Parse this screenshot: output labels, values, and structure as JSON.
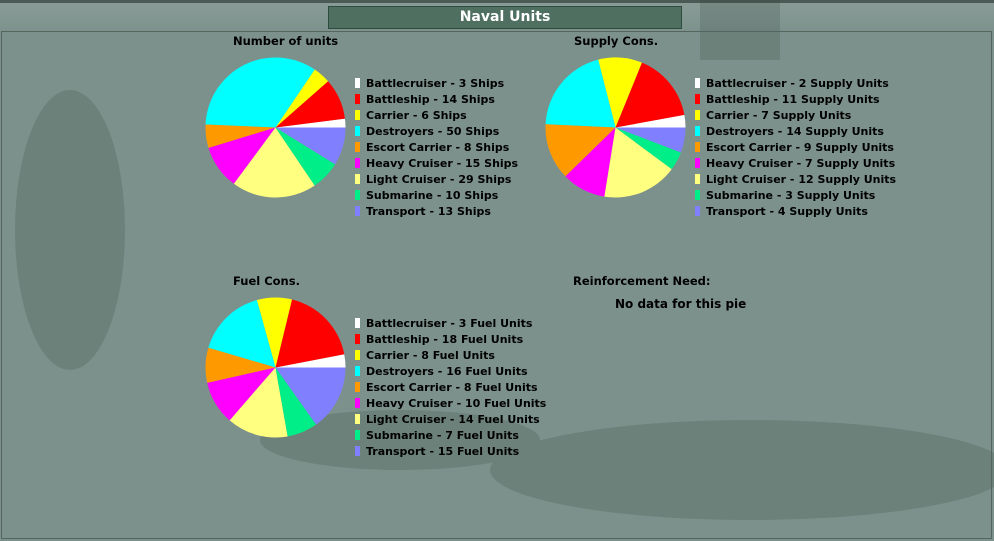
{
  "window": {
    "title": "Naval Units"
  },
  "legend_colors": {
    "Battlecruiser": "#ffffff",
    "Battleship": "#ff0000",
    "Carrier": "#ffff00",
    "Destroyers": "#00ffff",
    "Escort Carrier": "#ff9900",
    "Heavy Cruiser": "#ff00ff",
    "Light Cruiser": "#ffff80",
    "Submarine": "#00ee88",
    "Transport": "#8080ff"
  },
  "chart_data": [
    {
      "type": "pie",
      "title": "Number of units",
      "unit": "Ships",
      "categories": [
        "Battlecruiser",
        "Battleship",
        "Carrier",
        "Destroyers",
        "Escort Carrier",
        "Heavy Cruiser",
        "Light Cruiser",
        "Submarine",
        "Transport"
      ],
      "values": [
        3,
        14,
        6,
        50,
        8,
        15,
        29,
        10,
        13
      ],
      "legend_labels": [
        "Battlecruiser - 3 Ships",
        "Battleship - 14 Ships",
        "Carrier - 6 Ships",
        "Destroyers - 50 Ships",
        "Escort Carrier - 8 Ships",
        "Heavy Cruiser - 15 Ships",
        "Light Cruiser - 29 Ships",
        "Submarine - 10 Ships",
        "Transport - 13 Ships"
      ],
      "legend_placement": "right"
    },
    {
      "type": "pie",
      "title": "Supply Cons.",
      "unit": "Supply Units",
      "categories": [
        "Battlecruiser",
        "Battleship",
        "Carrier",
        "Destroyers",
        "Escort Carrier",
        "Heavy Cruiser",
        "Light Cruiser",
        "Submarine",
        "Transport"
      ],
      "values": [
        2,
        11,
        7,
        14,
        9,
        7,
        12,
        3,
        4
      ],
      "legend_labels": [
        "Battlecruiser - 2 Supply Units",
        "Battleship - 11 Supply Units",
        "Carrier - 7 Supply Units",
        "Destroyers - 14 Supply Units",
        "Escort Carrier - 9 Supply Units",
        "Heavy Cruiser - 7 Supply Units",
        "Light Cruiser - 12 Supply Units",
        "Submarine - 3 Supply Units",
        "Transport - 4 Supply Units"
      ],
      "legend_placement": "right"
    },
    {
      "type": "pie",
      "title": "Fuel Cons.",
      "unit": "Fuel Units",
      "categories": [
        "Battlecruiser",
        "Battleship",
        "Carrier",
        "Destroyers",
        "Escort Carrier",
        "Heavy Cruiser",
        "Light Cruiser",
        "Submarine",
        "Transport"
      ],
      "values": [
        3,
        18,
        8,
        16,
        8,
        10,
        14,
        7,
        15
      ],
      "legend_labels": [
        "Battlecruiser - 3 Fuel Units",
        "Battleship - 18 Fuel Units",
        "Carrier - 8 Fuel Units",
        "Destroyers - 16 Fuel Units",
        "Escort Carrier - 8 Fuel Units",
        "Heavy Cruiser - 10 Fuel Units",
        "Light Cruiser - 14 Fuel Units",
        "Submarine - 7 Fuel Units",
        "Transport - 15 Fuel Units"
      ],
      "legend_placement": "right"
    },
    {
      "type": "pie",
      "title": "Reinforcement Need:",
      "categories": [],
      "values": [],
      "empty_message": "No data for this pie"
    }
  ]
}
